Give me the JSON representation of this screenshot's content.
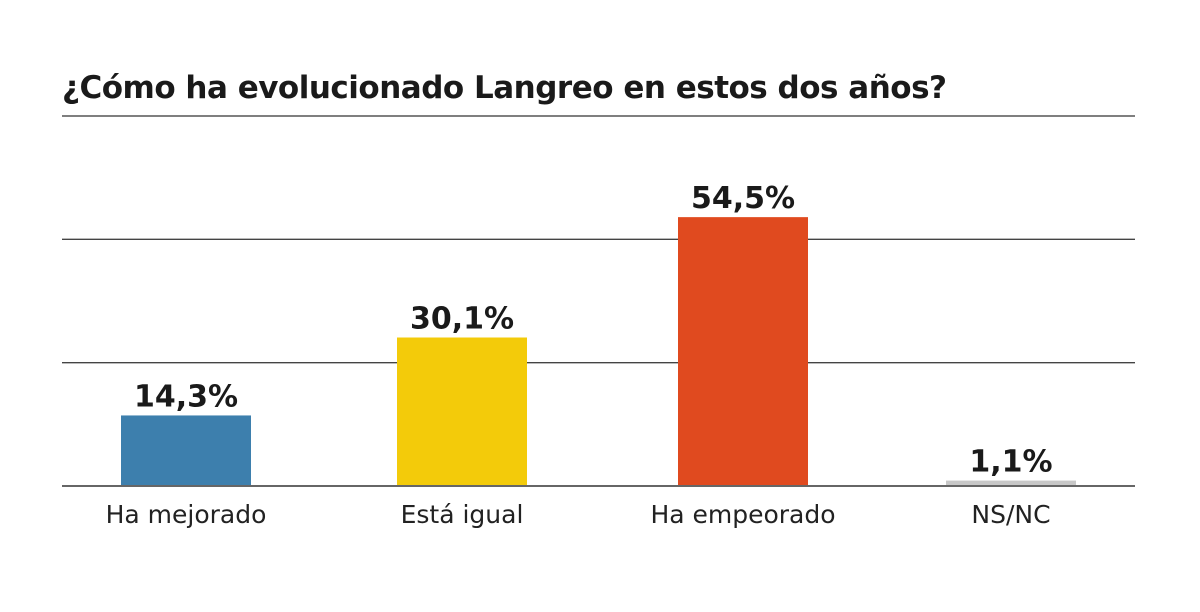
{
  "chart_data": {
    "type": "bar",
    "title": "¿Cómo ha evolucionado Langreo en estos dos años?",
    "categories": [
      "Ha mejorado",
      "Está igual",
      "Ha empeorado",
      "NS/NC"
    ],
    "values": [
      14.3,
      30.1,
      54.5,
      1.1
    ],
    "data_labels": [
      "14,3%",
      "30,1%",
      "54,5%",
      "1,1%"
    ],
    "colors": [
      "#3d7fad",
      "#f3cb0a",
      "#e04a1f",
      "#c8c8c8"
    ],
    "xlabel": "",
    "ylabel": "",
    "ylim": [
      0,
      75
    ],
    "gridlines": [
      0,
      25,
      50
    ],
    "grid": true,
    "legend": "none"
  }
}
